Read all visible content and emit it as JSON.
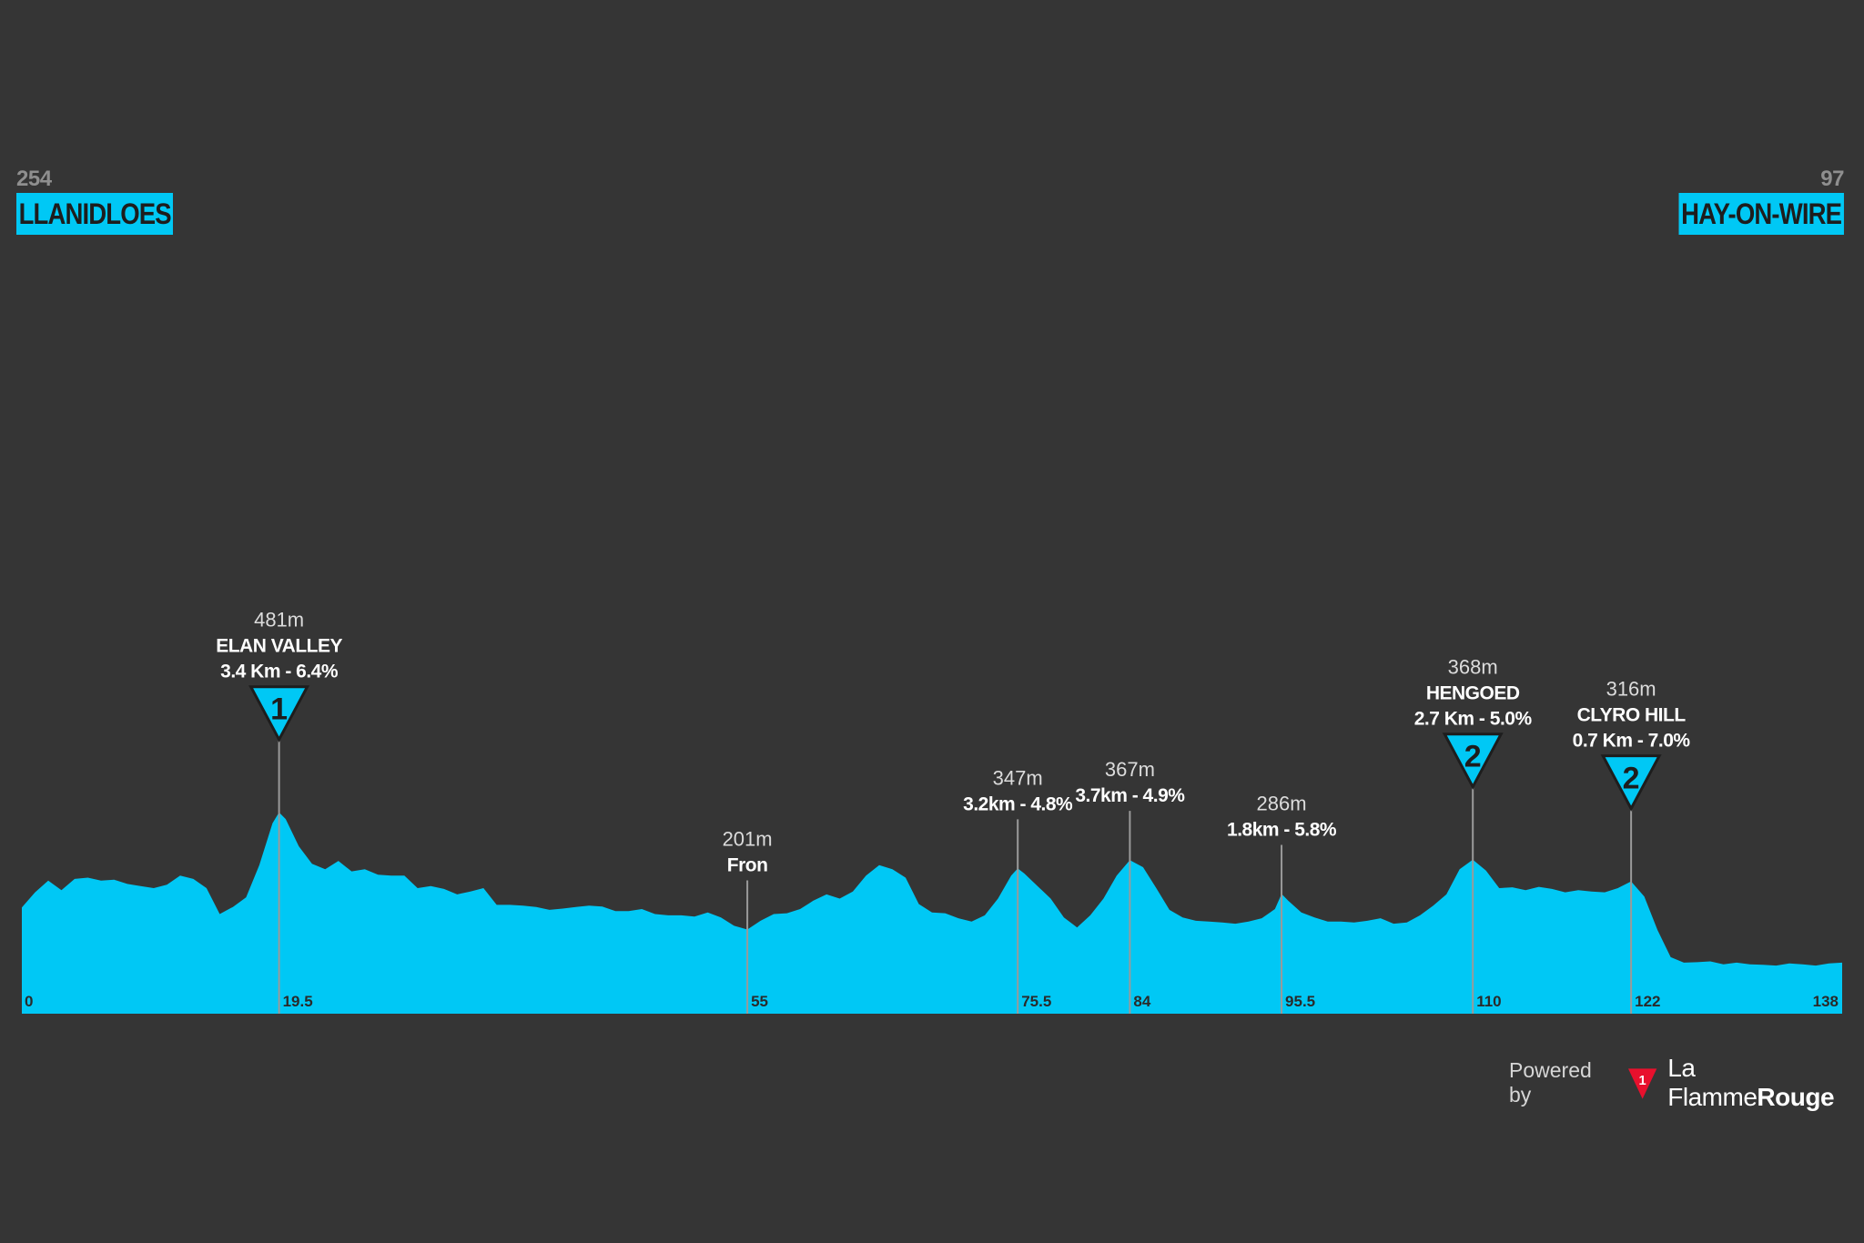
{
  "start": {
    "altitude": "254",
    "name": "LLANIDLOES"
  },
  "finish": {
    "altitude": "97",
    "name": "HAY-ON-WIRE"
  },
  "colors": {
    "background": "#353535",
    "profile": "#00c8f5",
    "marker_line": "#9a9a9a",
    "label": "#ffffff",
    "muted": "#d0d0d0"
  },
  "chart_data": {
    "type": "area",
    "xlim": [
      0,
      138
    ],
    "ylim": [
      0,
      650
    ],
    "x_ticks": [
      "0",
      "19.5",
      "55",
      "75.5",
      "84",
      "95.5",
      "110",
      "122",
      "138"
    ],
    "profile": [
      [
        0,
        254
      ],
      [
        1,
        290
      ],
      [
        2,
        318
      ],
      [
        3,
        295
      ],
      [
        4,
        322
      ],
      [
        5,
        325
      ],
      [
        6,
        318
      ],
      [
        7,
        320
      ],
      [
        8,
        310
      ],
      [
        9,
        305
      ],
      [
        10,
        300
      ],
      [
        11,
        308
      ],
      [
        12,
        330
      ],
      [
        13,
        322
      ],
      [
        14,
        300
      ],
      [
        15,
        238
      ],
      [
        16,
        255
      ],
      [
        17,
        278
      ],
      [
        18,
        355
      ],
      [
        19,
        455
      ],
      [
        19.5,
        481
      ],
      [
        20,
        465
      ],
      [
        21,
        400
      ],
      [
        22,
        358
      ],
      [
        23,
        345
      ],
      [
        24,
        365
      ],
      [
        25,
        340
      ],
      [
        26,
        345
      ],
      [
        27,
        332
      ],
      [
        28,
        330
      ],
      [
        29,
        330
      ],
      [
        30,
        300
      ],
      [
        31,
        305
      ],
      [
        32,
        298
      ],
      [
        33,
        285
      ],
      [
        34,
        292
      ],
      [
        35,
        300
      ],
      [
        36,
        260
      ],
      [
        37,
        260
      ],
      [
        38,
        258
      ],
      [
        39,
        255
      ],
      [
        40,
        248
      ],
      [
        41,
        251
      ],
      [
        42,
        255
      ],
      [
        43,
        258
      ],
      [
        44,
        256
      ],
      [
        45,
        245
      ],
      [
        46,
        245
      ],
      [
        47,
        250
      ],
      [
        48,
        238
      ],
      [
        49,
        235
      ],
      [
        50,
        235
      ],
      [
        51,
        232
      ],
      [
        52,
        242
      ],
      [
        53,
        230
      ],
      [
        54,
        210
      ],
      [
        55,
        201
      ],
      [
        56,
        222
      ],
      [
        57,
        238
      ],
      [
        58,
        240
      ],
      [
        59,
        250
      ],
      [
        60,
        270
      ],
      [
        61,
        285
      ],
      [
        62,
        275
      ],
      [
        63,
        292
      ],
      [
        64,
        330
      ],
      [
        65,
        355
      ],
      [
        66,
        345
      ],
      [
        67,
        325
      ],
      [
        68,
        262
      ],
      [
        69,
        242
      ],
      [
        70,
        240
      ],
      [
        71,
        228
      ],
      [
        72,
        220
      ],
      [
        73,
        235
      ],
      [
        74,
        275
      ],
      [
        75,
        330
      ],
      [
        75.5,
        347
      ],
      [
        76,
        335
      ],
      [
        77,
        305
      ],
      [
        78,
        275
      ],
      [
        79,
        230
      ],
      [
        80,
        206
      ],
      [
        81,
        235
      ],
      [
        82,
        275
      ],
      [
        83,
        330
      ],
      [
        84,
        367
      ],
      [
        85,
        350
      ],
      [
        86,
        300
      ],
      [
        87,
        248
      ],
      [
        88,
        230
      ],
      [
        89,
        222
      ],
      [
        90,
        220
      ],
      [
        91,
        218
      ],
      [
        92,
        215
      ],
      [
        93,
        220
      ],
      [
        94,
        228
      ],
      [
        95,
        250
      ],
      [
        95.5,
        286
      ],
      [
        96,
        270
      ],
      [
        97,
        242
      ],
      [
        98,
        230
      ],
      [
        99,
        220
      ],
      [
        100,
        220
      ],
      [
        101,
        218
      ],
      [
        102,
        222
      ],
      [
        103,
        228
      ],
      [
        104,
        215
      ],
      [
        105,
        218
      ],
      [
        106,
        235
      ],
      [
        107,
        258
      ],
      [
        108,
        285
      ],
      [
        109,
        345
      ],
      [
        110,
        368
      ],
      [
        111,
        342
      ],
      [
        112,
        300
      ],
      [
        113,
        302
      ],
      [
        114,
        295
      ],
      [
        115,
        303
      ],
      [
        116,
        298
      ],
      [
        117,
        290
      ],
      [
        118,
        295
      ],
      [
        119,
        292
      ],
      [
        120,
        290
      ],
      [
        121,
        300
      ],
      [
        122,
        316
      ],
      [
        123,
        280
      ],
      [
        124,
        200
      ],
      [
        125,
        135
      ],
      [
        126,
        122
      ],
      [
        127,
        123
      ],
      [
        128,
        125
      ],
      [
        129,
        118
      ],
      [
        130,
        122
      ],
      [
        131,
        118
      ],
      [
        132,
        117
      ],
      [
        133,
        115
      ],
      [
        134,
        120
      ],
      [
        135,
        118
      ],
      [
        136,
        115
      ],
      [
        137,
        120
      ],
      [
        138,
        122
      ]
    ],
    "markers": [
      {
        "km": 19.5,
        "alt": 481,
        "altitude_label": "481m",
        "name": "ELAN VALLEY",
        "detail": "3.4 Km - 6.4%",
        "category": "1",
        "tick_label": "19.5"
      },
      {
        "km": 55,
        "alt": 201,
        "altitude_label": "201m",
        "name": "Fron",
        "detail": "",
        "category": "",
        "tick_label": "55"
      },
      {
        "km": 75.5,
        "alt": 347,
        "altitude_label": "347m",
        "name": "",
        "detail": "3.2km - 4.8%",
        "category": "",
        "tick_label": "75.5"
      },
      {
        "km": 84,
        "alt": 367,
        "altitude_label": "367m",
        "name": "",
        "detail": "3.7km - 4.9%",
        "category": "",
        "tick_label": "84"
      },
      {
        "km": 95.5,
        "alt": 286,
        "altitude_label": "286m",
        "name": "",
        "detail": "1.8km - 5.8%",
        "category": "",
        "tick_label": "95.5"
      },
      {
        "km": 110,
        "alt": 368,
        "altitude_label": "368m",
        "name": "HENGOED",
        "detail": "2.7 Km - 5.0%",
        "category": "2",
        "tick_label": "110"
      },
      {
        "km": 122,
        "alt": 316,
        "altitude_label": "316m",
        "name": "CLYRO HILL",
        "detail": "0.7 Km - 7.0%",
        "category": "2",
        "tick_label": "122"
      }
    ]
  },
  "footer": {
    "powered_by": "Powered by",
    "flame_digit": "1",
    "brand_regular": "La Flamme",
    "brand_bold": "Rouge"
  }
}
